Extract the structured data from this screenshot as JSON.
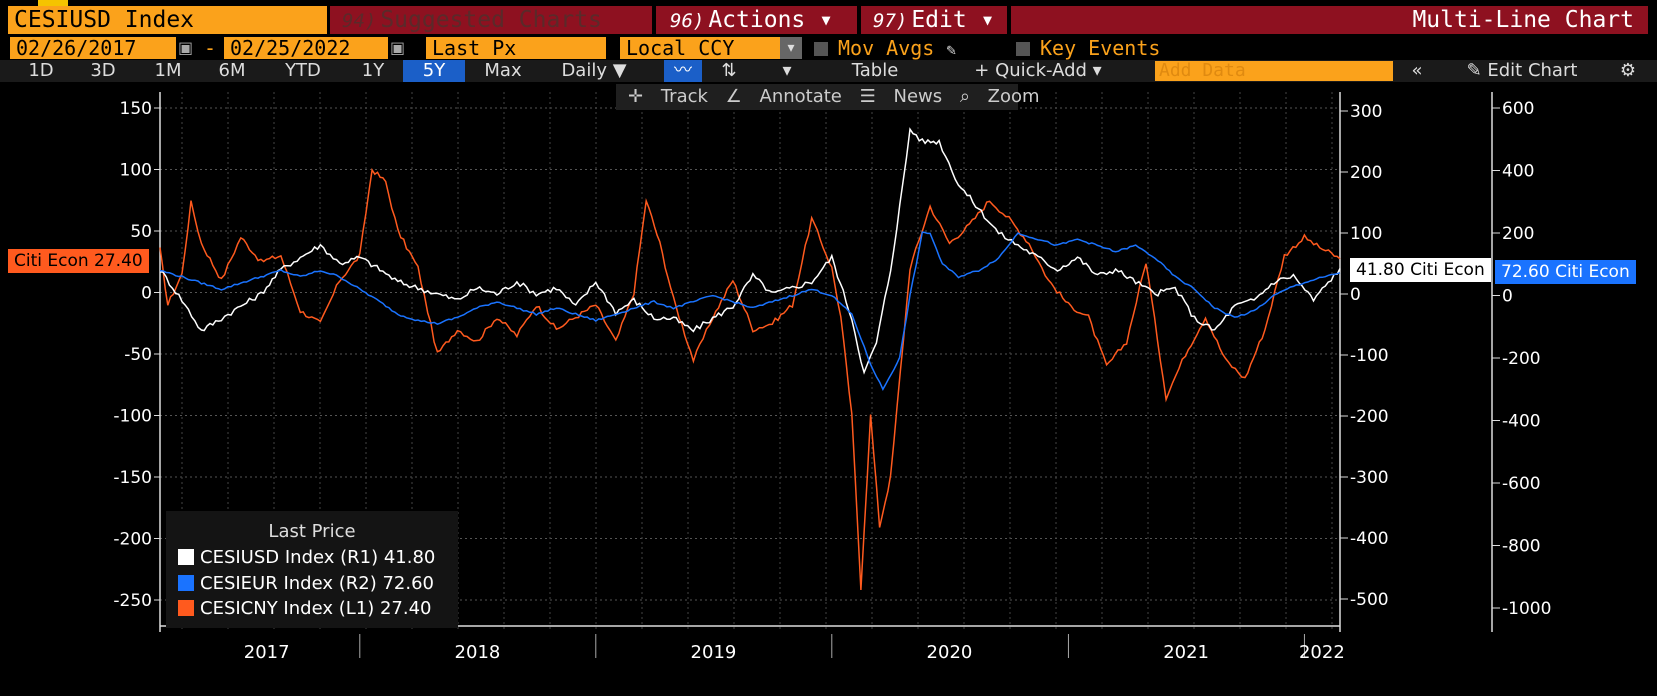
{
  "header": {
    "ticker": "CESIUSD Index",
    "suggested_num": "94)",
    "suggested_label": "Suggested Charts",
    "actions_num": "96)",
    "actions_label": "Actions ▾",
    "edit_num": "97)",
    "edit_label": "Edit ▾",
    "chart_type": "Multi-Line Chart"
  },
  "settings": {
    "start_date": "02/26/2017",
    "end_date": "02/25/2022",
    "field": "Last Px",
    "currency": "Local CCY",
    "mov_avgs": "Mov Avgs",
    "key_events": "Key Events"
  },
  "toolbar": {
    "ranges": [
      "1D",
      "3D",
      "1M",
      "6M",
      "YTD",
      "1Y",
      "5Y",
      "Max"
    ],
    "active_range": "5Y",
    "frequency": "Daily ▼",
    "table": "Table",
    "quick_add": "+ Quick-Add ▾",
    "add_data_placeholder": "Add Data",
    "edit_chart": "Edit Chart"
  },
  "chart_toolbar": {
    "track": "Track",
    "annotate": "Annotate",
    "news": "News",
    "zoom": "Zoom"
  },
  "axis_labels": {
    "cny": "Citi Econ 27.40",
    "usd": "41.80 Citi Econ",
    "eur": "72.60 Citi Econ"
  },
  "legend": {
    "title": "Last Price",
    "entries": [
      {
        "label": "CESIUSD Index  (R1) 41.80",
        "color": "#ffffff"
      },
      {
        "label": "CESIEUR Index  (R2) 72.60",
        "color": "#1a73ff"
      },
      {
        "label": "CESICNY Index  (L1) 27.40",
        "color": "#ff5a1e"
      }
    ]
  },
  "chart_data": {
    "type": "line",
    "x_axis": {
      "ticks": [
        "2017",
        "2018",
        "2019",
        "2020",
        "2021",
        "2022"
      ],
      "range": [
        "2017-02-26",
        "2022-02-25"
      ]
    },
    "axes": {
      "L1": {
        "range": [
          -275,
          160
        ],
        "ticks": [
          150,
          100,
          50,
          0,
          -50,
          -100,
          -150,
          -200,
          -250
        ]
      },
      "R1": {
        "range": [
          -550,
          320
        ],
        "ticks": [
          300,
          200,
          100,
          0,
          -100,
          -200,
          -300,
          -400,
          -500
        ]
      },
      "R2": {
        "range": [
          -1100,
          640
        ],
        "ticks": [
          600,
          400,
          200,
          0,
          -200,
          -400,
          -600,
          -800,
          -1000
        ]
      }
    },
    "grid": true,
    "series": [
      {
        "name": "CESICNY Index",
        "axis": "L1",
        "color": "#ff5a1e",
        "last": 27.4,
        "points": [
          [
            "2017-02-26",
            35
          ],
          [
            "2017-03-10",
            -10
          ],
          [
            "2017-04-01",
            15
          ],
          [
            "2017-04-15",
            73
          ],
          [
            "2017-05-01",
            40
          ],
          [
            "2017-06-01",
            10
          ],
          [
            "2017-07-01",
            45
          ],
          [
            "2017-08-01",
            25
          ],
          [
            "2017-09-01",
            30
          ],
          [
            "2017-10-01",
            -15
          ],
          [
            "2017-11-01",
            -25
          ],
          [
            "2017-12-01",
            10
          ],
          [
            "2018-01-01",
            30
          ],
          [
            "2018-01-20",
            100
          ],
          [
            "2018-02-10",
            90
          ],
          [
            "2018-03-01",
            50
          ],
          [
            "2018-04-01",
            20
          ],
          [
            "2018-05-01",
            -50
          ],
          [
            "2018-06-01",
            -30
          ],
          [
            "2018-07-01",
            -40
          ],
          [
            "2018-08-01",
            -20
          ],
          [
            "2018-09-01",
            -35
          ],
          [
            "2018-10-01",
            -10
          ],
          [
            "2018-11-01",
            -30
          ],
          [
            "2018-12-01",
            -20
          ],
          [
            "2019-01-01",
            -10
          ],
          [
            "2019-02-01",
            -40
          ],
          [
            "2019-03-01",
            0
          ],
          [
            "2019-03-20",
            75
          ],
          [
            "2019-04-10",
            40
          ],
          [
            "2019-05-01",
            -5
          ],
          [
            "2019-06-01",
            -55
          ],
          [
            "2019-07-01",
            -20
          ],
          [
            "2019-08-01",
            10
          ],
          [
            "2019-09-01",
            -30
          ],
          [
            "2019-10-01",
            -25
          ],
          [
            "2019-11-01",
            -10
          ],
          [
            "2019-12-01",
            60
          ],
          [
            "2020-01-01",
            20
          ],
          [
            "2020-01-15",
            -20
          ],
          [
            "2020-02-01",
            -100
          ],
          [
            "2020-02-15",
            -240
          ],
          [
            "2020-03-01",
            -100
          ],
          [
            "2020-03-15",
            -190
          ],
          [
            "2020-04-01",
            -150
          ],
          [
            "2020-05-01",
            20
          ],
          [
            "2020-06-01",
            70
          ],
          [
            "2020-07-01",
            40
          ],
          [
            "2020-08-01",
            55
          ],
          [
            "2020-09-01",
            75
          ],
          [
            "2020-10-01",
            60
          ],
          [
            "2020-11-01",
            40
          ],
          [
            "2020-12-01",
            10
          ],
          [
            "2021-01-01",
            -10
          ],
          [
            "2021-02-01",
            -20
          ],
          [
            "2021-03-01",
            -60
          ],
          [
            "2021-04-01",
            -40
          ],
          [
            "2021-05-01",
            25
          ],
          [
            "2021-06-01",
            -85
          ],
          [
            "2021-07-01",
            -50
          ],
          [
            "2021-08-01",
            -20
          ],
          [
            "2021-09-01",
            -55
          ],
          [
            "2021-10-01",
            -70
          ],
          [
            "2021-11-01",
            -30
          ],
          [
            "2021-12-01",
            30
          ],
          [
            "2022-01-01",
            45
          ],
          [
            "2022-01-20",
            38
          ],
          [
            "2022-02-25",
            27.4
          ]
        ]
      },
      {
        "name": "CESIUSD Index",
        "axis": "R1",
        "color": "#ffffff",
        "last": 41.8,
        "points": [
          [
            "2017-02-26",
            40
          ],
          [
            "2017-04-01",
            -10
          ],
          [
            "2017-05-01",
            -60
          ],
          [
            "2017-06-01",
            -40
          ],
          [
            "2017-07-01",
            -20
          ],
          [
            "2017-08-01",
            0
          ],
          [
            "2017-09-01",
            40
          ],
          [
            "2017-10-01",
            60
          ],
          [
            "2017-11-01",
            80
          ],
          [
            "2017-12-01",
            50
          ],
          [
            "2018-01-01",
            60
          ],
          [
            "2018-02-01",
            40
          ],
          [
            "2018-03-01",
            20
          ],
          [
            "2018-04-01",
            10
          ],
          [
            "2018-05-01",
            0
          ],
          [
            "2018-06-01",
            -10
          ],
          [
            "2018-07-01",
            10
          ],
          [
            "2018-08-01",
            0
          ],
          [
            "2018-09-01",
            20
          ],
          [
            "2018-10-01",
            0
          ],
          [
            "2018-11-01",
            10
          ],
          [
            "2018-12-01",
            -20
          ],
          [
            "2019-01-01",
            20
          ],
          [
            "2019-02-01",
            -30
          ],
          [
            "2019-03-01",
            -10
          ],
          [
            "2019-04-01",
            -40
          ],
          [
            "2019-05-01",
            -40
          ],
          [
            "2019-06-01",
            -60
          ],
          [
            "2019-07-01",
            -40
          ],
          [
            "2019-08-01",
            -20
          ],
          [
            "2019-09-01",
            30
          ],
          [
            "2019-10-01",
            0
          ],
          [
            "2019-11-01",
            10
          ],
          [
            "2019-12-01",
            20
          ],
          [
            "2020-01-01",
            60
          ],
          [
            "2020-02-01",
            -40
          ],
          [
            "2020-02-20",
            -130
          ],
          [
            "2020-03-10",
            -80
          ],
          [
            "2020-04-01",
            40
          ],
          [
            "2020-04-20",
            180
          ],
          [
            "2020-05-01",
            270
          ],
          [
            "2020-05-20",
            250
          ],
          [
            "2020-06-15",
            250
          ],
          [
            "2020-07-15",
            180
          ],
          [
            "2020-08-15",
            140
          ],
          [
            "2020-09-15",
            100
          ],
          [
            "2020-10-15",
            80
          ],
          [
            "2020-11-15",
            60
          ],
          [
            "2020-12-15",
            40
          ],
          [
            "2021-01-15",
            60
          ],
          [
            "2021-02-15",
            30
          ],
          [
            "2021-03-15",
            40
          ],
          [
            "2021-04-15",
            20
          ],
          [
            "2021-05-15",
            0
          ],
          [
            "2021-06-15",
            10
          ],
          [
            "2021-07-15",
            -40
          ],
          [
            "2021-08-15",
            -60
          ],
          [
            "2021-09-15",
            -20
          ],
          [
            "2021-10-15",
            -10
          ],
          [
            "2021-11-15",
            20
          ],
          [
            "2021-12-15",
            30
          ],
          [
            "2022-01-15",
            -10
          ],
          [
            "2022-02-25",
            41.8
          ]
        ]
      },
      {
        "name": "CESIEUR Index",
        "axis": "R2",
        "color": "#1a73ff",
        "last": 72.6,
        "points": [
          [
            "2017-02-26",
            80
          ],
          [
            "2017-04-01",
            60
          ],
          [
            "2017-05-01",
            40
          ],
          [
            "2017-06-01",
            20
          ],
          [
            "2017-07-01",
            40
          ],
          [
            "2017-08-01",
            60
          ],
          [
            "2017-09-01",
            80
          ],
          [
            "2017-10-01",
            60
          ],
          [
            "2017-11-01",
            80
          ],
          [
            "2017-12-01",
            60
          ],
          [
            "2018-01-01",
            20
          ],
          [
            "2018-02-01",
            -20
          ],
          [
            "2018-03-01",
            -60
          ],
          [
            "2018-04-01",
            -80
          ],
          [
            "2018-05-01",
            -90
          ],
          [
            "2018-06-01",
            -70
          ],
          [
            "2018-07-01",
            -40
          ],
          [
            "2018-08-01",
            -20
          ],
          [
            "2018-09-01",
            -40
          ],
          [
            "2018-10-01",
            -60
          ],
          [
            "2018-11-01",
            -40
          ],
          [
            "2018-12-01",
            -60
          ],
          [
            "2019-01-01",
            -80
          ],
          [
            "2019-02-01",
            -60
          ],
          [
            "2019-03-01",
            -40
          ],
          [
            "2019-04-01",
            -20
          ],
          [
            "2019-05-01",
            -40
          ],
          [
            "2019-06-01",
            -20
          ],
          [
            "2019-07-01",
            0
          ],
          [
            "2019-08-01",
            -20
          ],
          [
            "2019-09-01",
            -40
          ],
          [
            "2019-10-01",
            -20
          ],
          [
            "2019-11-01",
            0
          ],
          [
            "2019-12-01",
            20
          ],
          [
            "2020-01-01",
            0
          ],
          [
            "2020-02-01",
            -60
          ],
          [
            "2020-03-01",
            -220
          ],
          [
            "2020-03-20",
            -300
          ],
          [
            "2020-04-15",
            -200
          ],
          [
            "2020-05-01",
            0
          ],
          [
            "2020-05-20",
            200
          ],
          [
            "2020-06-01",
            200
          ],
          [
            "2020-06-20",
            100
          ],
          [
            "2020-07-15",
            60
          ],
          [
            "2020-08-15",
            80
          ],
          [
            "2020-09-15",
            120
          ],
          [
            "2020-10-15",
            200
          ],
          [
            "2020-11-15",
            180
          ],
          [
            "2020-12-15",
            160
          ],
          [
            "2021-01-15",
            180
          ],
          [
            "2021-02-15",
            160
          ],
          [
            "2021-03-15",
            140
          ],
          [
            "2021-04-15",
            160
          ],
          [
            "2021-05-15",
            120
          ],
          [
            "2021-06-15",
            60
          ],
          [
            "2021-07-15",
            20
          ],
          [
            "2021-08-15",
            -40
          ],
          [
            "2021-09-15",
            -70
          ],
          [
            "2021-10-15",
            -50
          ],
          [
            "2021-11-15",
            0
          ],
          [
            "2021-12-15",
            30
          ],
          [
            "2022-01-15",
            50
          ],
          [
            "2022-02-25",
            72.6
          ]
        ]
      }
    ]
  }
}
